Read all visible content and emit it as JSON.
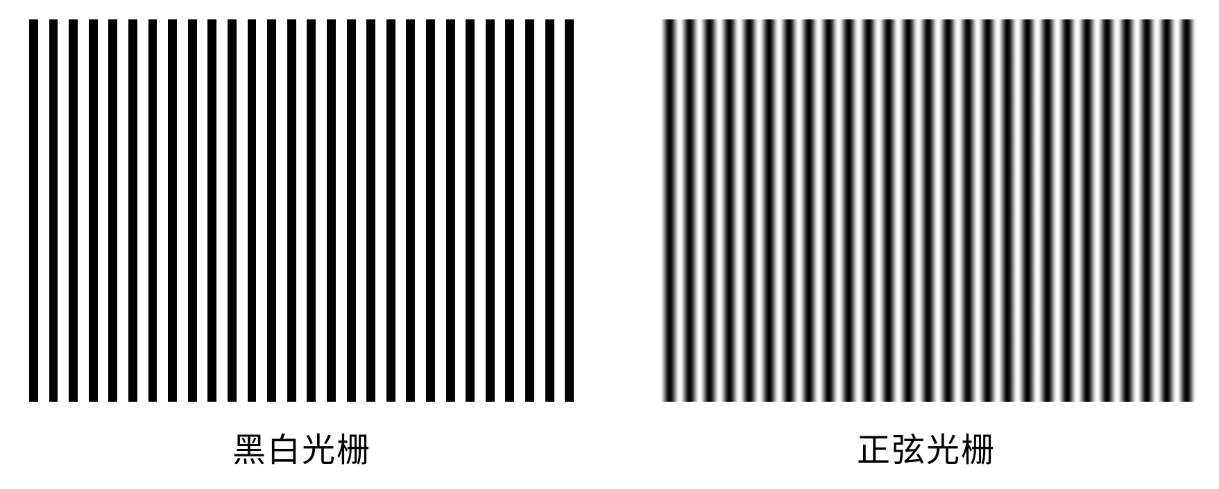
{
  "figure": {
    "panels": [
      {
        "caption": "黑白光栅",
        "pattern": "square-wave",
        "cycles": 28,
        "dark_color": "#000000",
        "light_color": "#ffffff"
      },
      {
        "caption": "正弦光栅",
        "pattern": "sinusoidal",
        "cycles": 27,
        "dark_color": "#000000",
        "light_color": "#ffffff"
      }
    ]
  }
}
